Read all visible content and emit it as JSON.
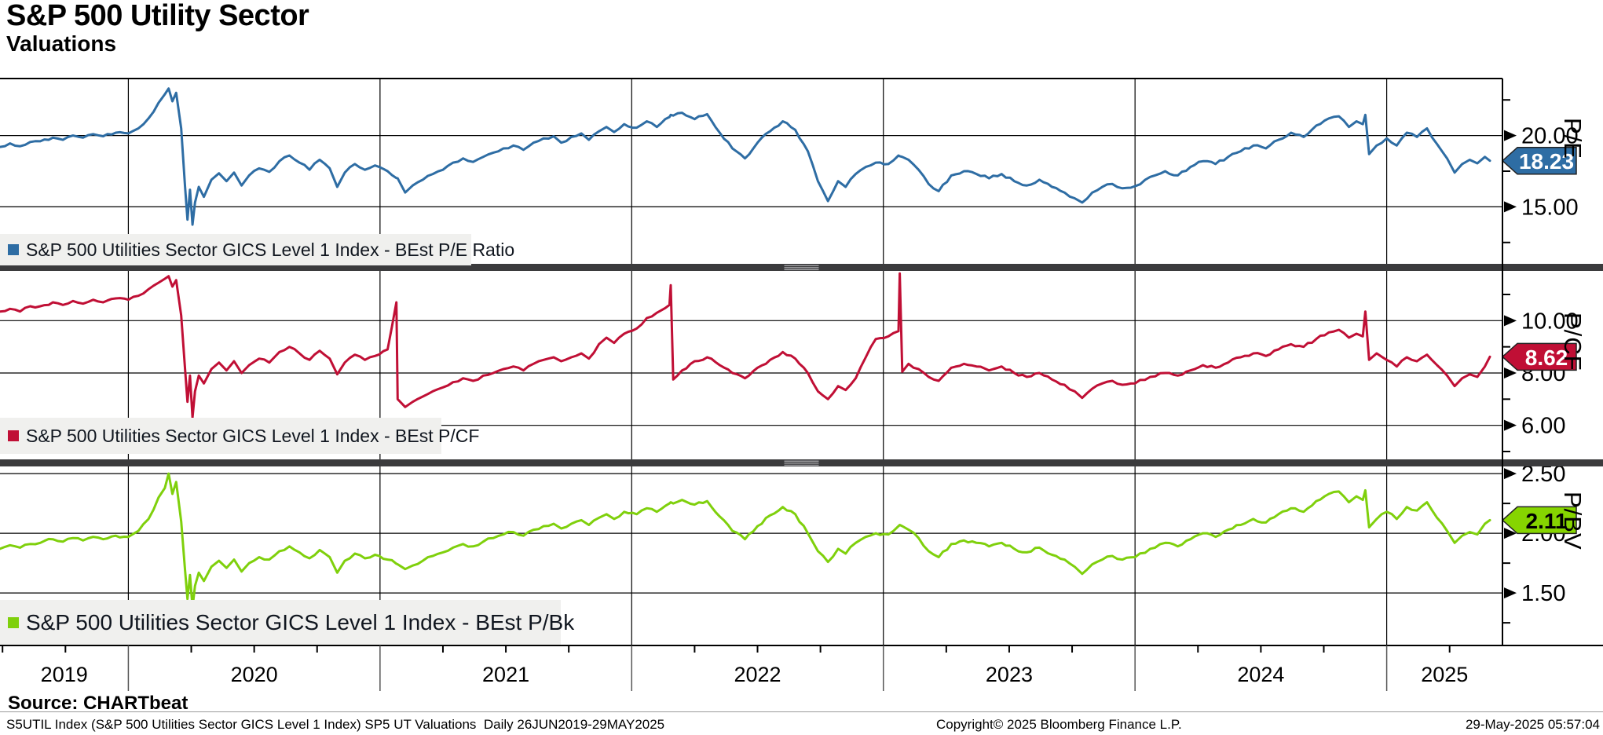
{
  "header": {
    "title": "S&P 500 Utility Sector",
    "subtitle": "Valuations"
  },
  "footer": {
    "source_label": "Source: CHARTbeat",
    "disclaimer": "S5UTIL Index (S&P 500 Utilities Sector GICS Level 1 Index) SP5 UT Valuations  Daily 26JUN2019-29MAY2025",
    "copyright": "Copyright© 2025 Bloomberg Finance L.P.",
    "timestamp": "29-May-2025 05:57:04"
  },
  "colors": {
    "background": "#ffffff",
    "grid": "#000000",
    "axis": "#000000",
    "separator_bar": "#3b3b3d",
    "separator_grip": "#a9a9ac",
    "legend_bg": "#f0f0ee",
    "year_divider": "#555555",
    "blue": "#2e6da4",
    "red": "#c00f35",
    "green": "#7fd00c"
  },
  "x_axis": {
    "domain": [
      2019.49,
      2025.46
    ],
    "year_ticks": [
      "2019",
      "2020",
      "2021",
      "2022",
      "2023",
      "2024",
      "2025"
    ],
    "year_boundaries": [
      2020,
      2021,
      2022,
      2023,
      2024,
      2025
    ],
    "range_note": "Daily 26JUN2019-29MAY2025"
  },
  "chart_data": [
    {
      "type": "line",
      "axis_label": "P/E",
      "legend": "S&P 500 Utilities Sector GICS Level 1 Index - BEst P/E Ratio",
      "color": "#2e6da4",
      "badge_fill": "#2e6da4",
      "badge_text_color": "#ffffff",
      "last_value": "18.23",
      "last_value_num": 18.23,
      "ylim": [
        11.0,
        24.0
      ],
      "yticks_labeled": [
        {
          "v": 20,
          "label": "20.00"
        },
        {
          "v": 15,
          "label": "15.00"
        }
      ],
      "yticks_minor": [
        22.5,
        17.5,
        12.5
      ],
      "jitter": 0.09,
      "values": [
        19.2,
        19.45,
        19.25,
        19.55,
        19.6,
        19.85,
        19.7,
        20.0,
        19.85,
        20.1,
        19.95,
        20.2,
        20.15,
        20.5,
        21.2,
        22.3,
        22.9,
        23.3,
        22.4,
        23.0,
        20.5,
        16.5,
        14.1,
        16.2,
        13.75,
        15.3,
        16.4,
        15.7,
        16.9,
        17.35,
        16.8,
        17.4,
        16.5,
        17.2,
        17.7,
        17.45,
        18.2,
        18.6,
        18.1,
        17.6,
        18.3,
        17.7,
        16.4,
        17.4,
        18.0,
        17.6,
        17.9,
        17.5,
        17.02,
        17.0,
        16.0,
        16.5,
        16.9,
        17.3,
        17.6,
        18.1,
        18.4,
        18.15,
        18.5,
        18.8,
        19.1,
        19.3,
        19.0,
        19.5,
        19.8,
        19.95,
        19.5,
        19.9,
        20.15,
        19.7,
        20.3,
        20.6,
        20.25,
        20.8,
        20.55,
        21.0,
        20.6,
        21.3,
        21.45,
        21.4,
        21.6,
        21.15,
        21.5,
        20.2,
        19.1,
        18.4,
        19.5,
        20.3,
        21.0,
        20.4,
        18.9,
        16.8,
        15.4,
        16.8,
        16.4,
        17.3,
        17.8,
        18.1,
        18.0,
        18.6,
        18.55,
        18.5,
        18.3,
        17.6,
        16.6,
        16.1,
        17.2,
        17.5,
        17.3,
        17.0,
        17.3,
        16.8,
        16.5,
        16.9,
        16.4,
        16.0,
        15.6,
        15.3,
        16.0,
        16.4,
        16.6,
        16.3,
        16.45,
        17.1,
        17.5,
        17.2,
        17.8,
        18.2,
        18.0,
        18.5,
        18.9,
        19.3,
        19.1,
        19.7,
        20.2,
        19.9,
        20.7,
        21.2,
        21.35,
        20.6,
        21.0,
        20.8,
        21.45,
        18.7,
        19.3,
        19.8,
        19.3,
        20.2,
        19.9,
        20.5,
        19.4,
        18.4,
        17.4,
        18.0,
        18.3,
        18.05,
        18.5,
        18.23
      ]
    },
    {
      "type": "line",
      "axis_label": "P/CF",
      "legend": "S&P 500 Utilities Sector GICS Level 1 Index - BEst P/CF",
      "color": "#c00f35",
      "badge_fill": "#c00f35",
      "badge_text_color": "#ffffff",
      "last_value": "8.62",
      "last_value_num": 8.62,
      "ylim": [
        4.7,
        11.9
      ],
      "yticks_labeled": [
        {
          "v": 10,
          "label": "10.00"
        },
        {
          "v": 8,
          "label": "8.00"
        },
        {
          "v": 6,
          "label": "6.00"
        }
      ],
      "yticks_minor": [
        11.0,
        9.0,
        7.0,
        5.0
      ],
      "jitter": 0.05,
      "values": [
        10.35,
        10.45,
        10.35,
        10.55,
        10.55,
        10.7,
        10.6,
        10.75,
        10.65,
        10.8,
        10.7,
        10.85,
        10.8,
        10.95,
        11.2,
        11.45,
        11.6,
        11.7,
        11.3,
        11.55,
        10.2,
        8.2,
        6.9,
        7.9,
        6.3,
        7.3,
        7.9,
        7.6,
        8.15,
        8.4,
        8.1,
        8.45,
        8.0,
        8.3,
        8.55,
        8.4,
        8.8,
        9.0,
        8.75,
        8.5,
        8.85,
        8.55,
        7.95,
        8.4,
        8.7,
        8.5,
        8.65,
        8.9,
        10.7,
        7.0,
        6.7,
        6.9,
        7.1,
        7.3,
        7.45,
        7.65,
        7.8,
        7.7,
        7.9,
        8.0,
        8.15,
        8.25,
        8.1,
        8.35,
        8.5,
        8.6,
        8.45,
        8.6,
        8.75,
        8.55,
        9.1,
        9.35,
        9.15,
        9.5,
        9.7,
        10.1,
        10.3,
        10.6,
        11.35,
        7.75,
        8.1,
        8.45,
        8.6,
        8.3,
        8.0,
        7.8,
        8.2,
        8.5,
        8.8,
        8.55,
        8.0,
        7.3,
        7.0,
        7.5,
        7.35,
        7.8,
        8.6,
        9.3,
        9.4,
        9.6,
        11.8,
        8.05,
        8.35,
        8.15,
        7.85,
        7.7,
        8.2,
        8.35,
        8.25,
        8.1,
        8.25,
        8.0,
        7.85,
        8.0,
        7.75,
        7.55,
        7.3,
        7.05,
        7.4,
        7.6,
        7.7,
        7.55,
        7.6,
        7.85,
        8.0,
        7.9,
        8.1,
        8.3,
        8.2,
        8.4,
        8.6,
        8.75,
        8.65,
        8.9,
        9.1,
        9.0,
        9.3,
        9.55,
        9.65,
        9.35,
        9.5,
        9.4,
        10.35,
        8.5,
        8.75,
        8.5,
        8.25,
        8.6,
        8.45,
        8.7,
        8.3,
        7.9,
        7.5,
        7.8,
        7.95,
        7.85,
        8.25,
        8.62
      ]
    },
    {
      "type": "line",
      "axis_label": "P/BV",
      "legend": "S&P 500 Utilities Sector GICS Level 1 Index - BEst P/Bk",
      "color": "#7fd00c",
      "badge_fill": "#86d500",
      "badge_text_color": "#000000",
      "last_value": "2.11",
      "last_value_num": 2.11,
      "ylim": [
        1.06,
        2.56
      ],
      "yticks_labeled": [
        {
          "v": 2.5,
          "label": "2.50"
        },
        {
          "v": 2.0,
          "label": "2.00"
        },
        {
          "v": 1.5,
          "label": "1.50"
        }
      ],
      "yticks_minor": [
        2.25,
        1.75,
        1.25
      ],
      "jitter": 0.012,
      "values": [
        1.87,
        1.9,
        1.88,
        1.91,
        1.92,
        1.95,
        1.93,
        1.96,
        1.94,
        1.97,
        1.95,
        1.98,
        1.97,
        2.02,
        2.12,
        2.3,
        2.38,
        2.5,
        2.33,
        2.43,
        2.1,
        1.7,
        1.45,
        1.65,
        1.38,
        1.56,
        1.67,
        1.6,
        1.72,
        1.77,
        1.71,
        1.78,
        1.68,
        1.75,
        1.8,
        1.78,
        1.85,
        1.89,
        1.84,
        1.79,
        1.86,
        1.8,
        1.67,
        1.77,
        1.83,
        1.79,
        1.82,
        1.78,
        1.745,
        1.74,
        1.7,
        1.73,
        1.77,
        1.81,
        1.84,
        1.88,
        1.91,
        1.89,
        1.93,
        1.96,
        1.99,
        2.01,
        1.98,
        2.03,
        2.06,
        2.08,
        2.04,
        2.08,
        2.11,
        2.07,
        2.13,
        2.16,
        2.12,
        2.18,
        2.16,
        2.21,
        2.18,
        2.25,
        2.26,
        2.25,
        2.28,
        2.24,
        2.27,
        2.14,
        2.02,
        1.95,
        2.06,
        2.15,
        2.22,
        2.16,
        2.0,
        1.85,
        1.76,
        1.87,
        1.83,
        1.92,
        1.97,
        2.0,
        1.99,
        2.06,
        2.07,
        2.06,
        2.03,
        1.96,
        1.85,
        1.8,
        1.91,
        1.94,
        1.92,
        1.89,
        1.92,
        1.87,
        1.84,
        1.88,
        1.82,
        1.78,
        1.72,
        1.66,
        1.74,
        1.78,
        1.81,
        1.78,
        1.8,
        1.87,
        1.92,
        1.89,
        1.95,
        2.0,
        1.97,
        2.03,
        2.07,
        2.12,
        2.09,
        2.16,
        2.21,
        2.18,
        2.27,
        2.33,
        2.35,
        2.26,
        2.31,
        2.28,
        2.36,
        2.05,
        2.12,
        2.18,
        2.12,
        2.22,
        2.19,
        2.26,
        2.13,
        2.02,
        1.92,
        1.98,
        2.01,
        1.99,
        2.08,
        2.11
      ]
    }
  ],
  "x_years": [
    2019.49,
    2019.53,
    2019.57,
    2019.61,
    2019.65,
    2019.7,
    2019.74,
    2019.78,
    2019.82,
    2019.86,
    2019.9,
    2019.95,
    2020.0,
    2020.04,
    2020.08,
    2020.12,
    2020.145,
    2020.16,
    2020.175,
    2020.19,
    2020.21,
    2020.225,
    2020.235,
    2020.245,
    2020.255,
    2020.265,
    2020.28,
    2020.3,
    2020.33,
    2020.36,
    2020.39,
    2020.42,
    2020.45,
    2020.48,
    2020.52,
    2020.56,
    2020.6,
    2020.64,
    2020.68,
    2020.72,
    2020.76,
    2020.8,
    2020.83,
    2020.86,
    2020.9,
    2020.94,
    2020.98,
    2021.03,
    2021.065,
    2021.07,
    2021.1,
    2021.13,
    2021.17,
    2021.21,
    2021.25,
    2021.29,
    2021.33,
    2021.37,
    2021.41,
    2021.45,
    2021.49,
    2021.53,
    2021.57,
    2021.61,
    2021.65,
    2021.69,
    2021.72,
    2021.76,
    2021.8,
    2021.83,
    2021.87,
    2021.9,
    2021.93,
    2021.97,
    2022.02,
    2022.06,
    2022.1,
    2022.15,
    2022.155,
    2022.165,
    2022.2,
    2022.25,
    2022.3,
    2022.35,
    2022.4,
    2022.45,
    2022.5,
    2022.55,
    2022.6,
    2022.65,
    2022.7,
    2022.74,
    2022.78,
    2022.82,
    2022.85,
    2022.89,
    2022.93,
    2022.97,
    2023.02,
    2023.06,
    2023.065,
    2023.075,
    2023.1,
    2023.14,
    2023.18,
    2023.22,
    2023.27,
    2023.32,
    2023.37,
    2023.42,
    2023.47,
    2023.52,
    2023.57,
    2023.62,
    2023.67,
    2023.72,
    2023.76,
    2023.79,
    2023.83,
    2023.87,
    2023.91,
    2023.95,
    2024.0,
    2024.06,
    2024.12,
    2024.17,
    2024.22,
    2024.27,
    2024.32,
    2024.37,
    2024.42,
    2024.47,
    2024.52,
    2024.57,
    2024.62,
    2024.67,
    2024.72,
    2024.77,
    2024.81,
    2024.85,
    2024.88,
    2024.905,
    2024.915,
    2024.93,
    2024.96,
    2025.0,
    2025.04,
    2025.08,
    2025.12,
    2025.16,
    2025.2,
    2025.24,
    2025.27,
    2025.3,
    2025.33,
    2025.36,
    2025.39,
    2025.41
  ]
}
